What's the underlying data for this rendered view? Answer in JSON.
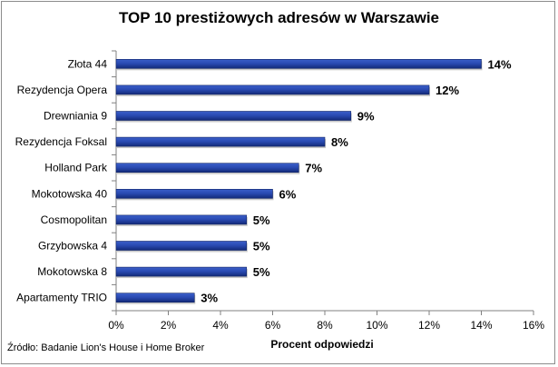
{
  "chart_data": {
    "type": "bar",
    "orientation": "horizontal",
    "title": "TOP 10 prestiżowych adresów w Warszawie",
    "xlabel": "Procent odpowiedzi",
    "ylabel": "",
    "categories": [
      "Złota 44",
      "Rezydencja Opera",
      "Drewniania 9",
      "Rezydencja Foksal",
      "Holland Park",
      "Mokotowska 40",
      "Cosmopolitan",
      "Grzybowska 4",
      "Mokotowska 8",
      "Apartamenty TRIO"
    ],
    "values": [
      14,
      12,
      9,
      8,
      7,
      6,
      5,
      5,
      5,
      3
    ],
    "data_labels": [
      "14%",
      "12%",
      "9%",
      "8%",
      "7%",
      "6%",
      "5%",
      "5%",
      "5%",
      "3%"
    ],
    "xlim": [
      0,
      16
    ],
    "x_ticks": [
      0,
      2,
      4,
      6,
      8,
      10,
      12,
      14,
      16
    ],
    "x_tick_labels": [
      "0%",
      "2%",
      "4%",
      "6%",
      "8%",
      "10%",
      "12%",
      "14%",
      "16%"
    ],
    "grid": false,
    "legend": "none",
    "bar_color": "#1f3f9a"
  },
  "source": "Źródło: Badanie Lion's House i Home Broker"
}
